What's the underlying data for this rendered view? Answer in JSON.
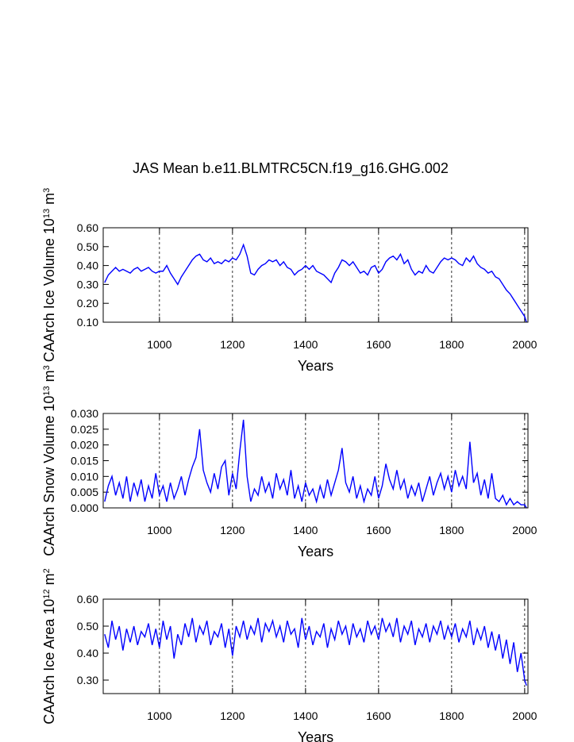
{
  "chart_data": [
    {
      "type": "line",
      "title": "JAS Mean b.e11.BLMTRC5CN.f19_g16.GHG.002",
      "ylabel": [
        "CAArch Ice Volume 10",
        "13",
        " m",
        "3"
      ],
      "xlabel": "Years",
      "xlim": [
        846,
        2009
      ],
      "xticks": [
        1000,
        1200,
        1400,
        1600,
        1800,
        2000
      ],
      "ylim": [
        0.1,
        0.6
      ],
      "yticks": [
        {
          "value": 0.1,
          "label": "0.10"
        },
        {
          "value": 0.2,
          "label": "0.20"
        },
        {
          "value": 0.3,
          "label": "0.30"
        },
        {
          "value": 0.4,
          "label": "0.40"
        },
        {
          "value": 0.5,
          "label": "0.50"
        },
        {
          "value": 0.6,
          "label": "0.60"
        }
      ],
      "grid": true,
      "color": "#0000ff",
      "x": [
        850,
        860,
        870,
        880,
        890,
        900,
        910,
        920,
        930,
        940,
        950,
        960,
        970,
        980,
        990,
        1000,
        1010,
        1020,
        1030,
        1040,
        1050,
        1060,
        1070,
        1080,
        1090,
        1100,
        1110,
        1120,
        1130,
        1140,
        1150,
        1160,
        1170,
        1180,
        1190,
        1200,
        1210,
        1220,
        1230,
        1240,
        1250,
        1260,
        1270,
        1280,
        1290,
        1300,
        1310,
        1320,
        1330,
        1340,
        1350,
        1360,
        1370,
        1380,
        1390,
        1400,
        1410,
        1420,
        1430,
        1440,
        1450,
        1460,
        1470,
        1480,
        1490,
        1500,
        1510,
        1520,
        1530,
        1540,
        1550,
        1560,
        1570,
        1580,
        1590,
        1600,
        1610,
        1620,
        1630,
        1640,
        1650,
        1660,
        1670,
        1680,
        1690,
        1700,
        1710,
        1720,
        1730,
        1740,
        1750,
        1760,
        1770,
        1780,
        1790,
        1800,
        1810,
        1820,
        1830,
        1840,
        1850,
        1860,
        1870,
        1880,
        1890,
        1900,
        1910,
        1920,
        1930,
        1940,
        1950,
        1960,
        1970,
        1980,
        1990,
        2000,
        2005
      ],
      "values": [
        0.31,
        0.35,
        0.37,
        0.39,
        0.37,
        0.38,
        0.37,
        0.36,
        0.38,
        0.39,
        0.37,
        0.38,
        0.39,
        0.37,
        0.36,
        0.37,
        0.37,
        0.4,
        0.36,
        0.33,
        0.3,
        0.34,
        0.37,
        0.4,
        0.43,
        0.45,
        0.46,
        0.43,
        0.42,
        0.44,
        0.41,
        0.42,
        0.41,
        0.43,
        0.42,
        0.44,
        0.43,
        0.46,
        0.51,
        0.45,
        0.36,
        0.35,
        0.38,
        0.4,
        0.41,
        0.43,
        0.42,
        0.43,
        0.4,
        0.42,
        0.39,
        0.38,
        0.35,
        0.37,
        0.38,
        0.4,
        0.38,
        0.4,
        0.37,
        0.36,
        0.35,
        0.33,
        0.31,
        0.36,
        0.39,
        0.43,
        0.42,
        0.4,
        0.42,
        0.39,
        0.36,
        0.37,
        0.35,
        0.39,
        0.4,
        0.36,
        0.38,
        0.42,
        0.44,
        0.45,
        0.43,
        0.46,
        0.41,
        0.43,
        0.38,
        0.35,
        0.37,
        0.36,
        0.4,
        0.37,
        0.36,
        0.39,
        0.42,
        0.44,
        0.43,
        0.44,
        0.43,
        0.41,
        0.4,
        0.44,
        0.42,
        0.45,
        0.41,
        0.39,
        0.38,
        0.36,
        0.37,
        0.34,
        0.33,
        0.3,
        0.27,
        0.25,
        0.22,
        0.19,
        0.16,
        0.13,
        0.1
      ]
    },
    {
      "type": "line",
      "ylabel": [
        "CAArch Snow Volume 10",
        "13",
        " m",
        "3"
      ],
      "xlabel": "Years",
      "xlim": [
        846,
        2009
      ],
      "xticks": [
        1000,
        1200,
        1400,
        1600,
        1800,
        2000
      ],
      "ylim": [
        0,
        0.03
      ],
      "yticks": [
        {
          "value": 0,
          "label": "0.000"
        },
        {
          "value": 0.005,
          "label": "0.005"
        },
        {
          "value": 0.01,
          "label": "0.010"
        },
        {
          "value": 0.015,
          "label": "0.015"
        },
        {
          "value": 0.02,
          "label": "0.020"
        },
        {
          "value": 0.025,
          "label": "0.025"
        },
        {
          "value": 0.03,
          "label": "0.030"
        }
      ],
      "grid": true,
      "color": "#0000ff",
      "x": [
        850,
        860,
        870,
        880,
        890,
        900,
        910,
        920,
        930,
        940,
        950,
        960,
        970,
        980,
        990,
        1000,
        1010,
        1020,
        1030,
        1040,
        1050,
        1060,
        1070,
        1080,
        1090,
        1100,
        1110,
        1120,
        1130,
        1140,
        1150,
        1160,
        1170,
        1180,
        1190,
        1200,
        1210,
        1220,
        1230,
        1240,
        1250,
        1260,
        1270,
        1280,
        1290,
        1300,
        1310,
        1320,
        1330,
        1340,
        1350,
        1360,
        1370,
        1380,
        1390,
        1400,
        1410,
        1420,
        1430,
        1440,
        1450,
        1460,
        1470,
        1480,
        1490,
        1500,
        1510,
        1520,
        1530,
        1540,
        1550,
        1560,
        1570,
        1580,
        1590,
        1600,
        1610,
        1620,
        1630,
        1640,
        1650,
        1660,
        1670,
        1680,
        1690,
        1700,
        1710,
        1720,
        1730,
        1740,
        1750,
        1760,
        1770,
        1780,
        1790,
        1800,
        1810,
        1820,
        1830,
        1840,
        1850,
        1860,
        1870,
        1880,
        1890,
        1900,
        1910,
        1920,
        1930,
        1940,
        1950,
        1960,
        1970,
        1980,
        1990,
        2000,
        2005
      ],
      "values": [
        0.002,
        0.007,
        0.01,
        0.004,
        0.008,
        0.003,
        0.01,
        0.002,
        0.008,
        0.004,
        0.009,
        0.002,
        0.007,
        0.003,
        0.011,
        0.004,
        0.007,
        0.002,
        0.008,
        0.003,
        0.006,
        0.01,
        0.004,
        0.009,
        0.013,
        0.016,
        0.025,
        0.012,
        0.008,
        0.005,
        0.011,
        0.006,
        0.013,
        0.015,
        0.004,
        0.011,
        0.006,
        0.018,
        0.028,
        0.01,
        0.002,
        0.006,
        0.004,
        0.01,
        0.005,
        0.008,
        0.003,
        0.011,
        0.006,
        0.009,
        0.004,
        0.012,
        0.003,
        0.007,
        0.002,
        0.008,
        0.004,
        0.006,
        0.002,
        0.007,
        0.003,
        0.009,
        0.004,
        0.008,
        0.012,
        0.019,
        0.008,
        0.005,
        0.01,
        0.003,
        0.007,
        0.002,
        0.006,
        0.004,
        0.01,
        0.003,
        0.007,
        0.014,
        0.009,
        0.006,
        0.012,
        0.006,
        0.009,
        0.003,
        0.007,
        0.004,
        0.008,
        0.002,
        0.006,
        0.01,
        0.004,
        0.008,
        0.011,
        0.006,
        0.01,
        0.005,
        0.012,
        0.007,
        0.01,
        0.006,
        0.021,
        0.008,
        0.011,
        0.004,
        0.009,
        0.003,
        0.011,
        0.003,
        0.002,
        0.004,
        0.001,
        0.003,
        0.001,
        0.002,
        0.001,
        0.001,
        0.0
      ]
    },
    {
      "type": "line",
      "ylabel": [
        "CAArch Ice Area 10",
        "12",
        " m",
        "2"
      ],
      "xlabel": "Years",
      "xlim": [
        846,
        2009
      ],
      "xticks": [
        1000,
        1200,
        1400,
        1600,
        1800,
        2000
      ],
      "ylim": [
        0.25,
        0.6
      ],
      "yticks": [
        {
          "value": 0.3,
          "label": "0.30"
        },
        {
          "value": 0.4,
          "label": "0.40"
        },
        {
          "value": 0.5,
          "label": "0.50"
        },
        {
          "value": 0.6,
          "label": "0.60"
        }
      ],
      "grid": true,
      "color": "#0000ff",
      "x": [
        850,
        860,
        870,
        880,
        890,
        900,
        910,
        920,
        930,
        940,
        950,
        960,
        970,
        980,
        990,
        1000,
        1010,
        1020,
        1030,
        1040,
        1050,
        1060,
        1070,
        1080,
        1090,
        1100,
        1110,
        1120,
        1130,
        1140,
        1150,
        1160,
        1170,
        1180,
        1190,
        1200,
        1210,
        1220,
        1230,
        1240,
        1250,
        1260,
        1270,
        1280,
        1290,
        1300,
        1310,
        1320,
        1330,
        1340,
        1350,
        1360,
        1370,
        1380,
        1390,
        1400,
        1410,
        1420,
        1430,
        1440,
        1450,
        1460,
        1470,
        1480,
        1490,
        1500,
        1510,
        1520,
        1530,
        1540,
        1550,
        1560,
        1570,
        1580,
        1590,
        1600,
        1610,
        1620,
        1630,
        1640,
        1650,
        1660,
        1670,
        1680,
        1690,
        1700,
        1710,
        1720,
        1730,
        1740,
        1750,
        1760,
        1770,
        1780,
        1790,
        1800,
        1810,
        1820,
        1830,
        1840,
        1850,
        1860,
        1870,
        1880,
        1890,
        1900,
        1910,
        1920,
        1930,
        1940,
        1950,
        1960,
        1970,
        1980,
        1990,
        2000,
        2005
      ],
      "values": [
        0.47,
        0.42,
        0.52,
        0.45,
        0.5,
        0.41,
        0.49,
        0.44,
        0.5,
        0.43,
        0.48,
        0.46,
        0.51,
        0.43,
        0.49,
        0.42,
        0.52,
        0.45,
        0.5,
        0.38,
        0.47,
        0.43,
        0.51,
        0.46,
        0.53,
        0.44,
        0.5,
        0.47,
        0.52,
        0.43,
        0.48,
        0.46,
        0.51,
        0.42,
        0.49,
        0.39,
        0.5,
        0.46,
        0.52,
        0.45,
        0.5,
        0.47,
        0.53,
        0.44,
        0.51,
        0.48,
        0.52,
        0.46,
        0.5,
        0.44,
        0.52,
        0.47,
        0.49,
        0.42,
        0.53,
        0.45,
        0.5,
        0.43,
        0.48,
        0.46,
        0.51,
        0.42,
        0.49,
        0.45,
        0.52,
        0.47,
        0.5,
        0.43,
        0.51,
        0.46,
        0.49,
        0.44,
        0.52,
        0.47,
        0.5,
        0.45,
        0.53,
        0.48,
        0.51,
        0.46,
        0.53,
        0.44,
        0.5,
        0.47,
        0.52,
        0.43,
        0.49,
        0.46,
        0.51,
        0.44,
        0.5,
        0.47,
        0.52,
        0.45,
        0.5,
        0.46,
        0.51,
        0.44,
        0.49,
        0.46,
        0.52,
        0.43,
        0.49,
        0.45,
        0.5,
        0.42,
        0.48,
        0.41,
        0.47,
        0.38,
        0.45,
        0.36,
        0.44,
        0.33,
        0.4,
        0.3,
        0.28
      ]
    }
  ]
}
